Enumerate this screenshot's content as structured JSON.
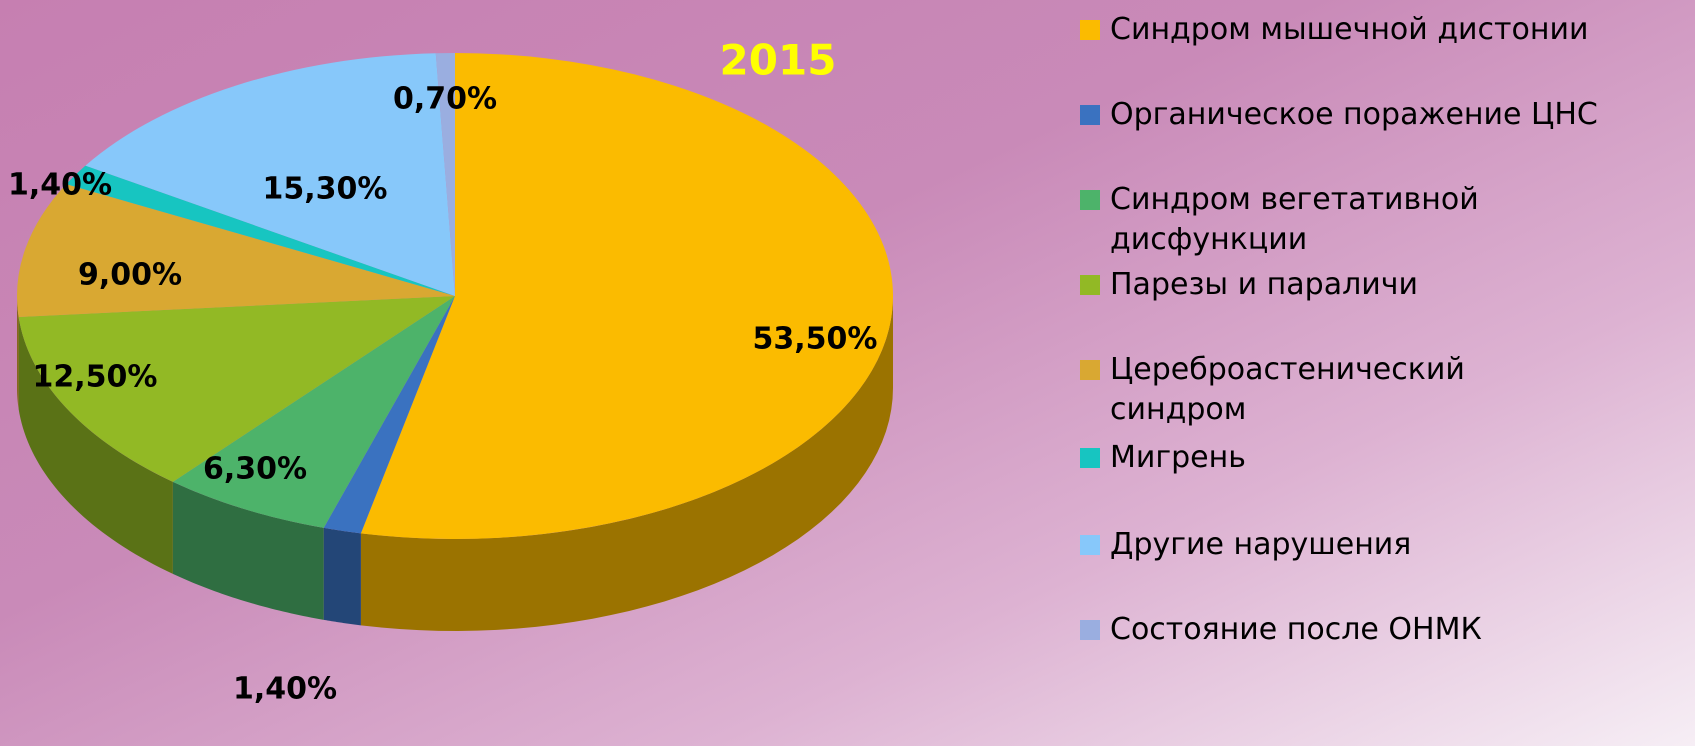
{
  "chart_data": {
    "type": "pie",
    "title": "2015",
    "series": [
      {
        "name": "Синдром мышечной дистонии",
        "color": "#fbbb00"
      },
      {
        "name": "Органическое поражение ЦНС",
        "color": "#3a72c0"
      },
      {
        "name": "Синдром вегетативной дисфункции",
        "color": "#4db36a"
      },
      {
        "name": "Парезы и параличи",
        "color": "#92b925"
      },
      {
        "name": "Цереброастенический синдром",
        "color": "#d9a832"
      },
      {
        "name": "Мигрень",
        "color": "#17c5c1"
      },
      {
        "name": "Другие нарушения",
        "color": "#87c8fa"
      },
      {
        "name": "Состояние после ОНМК",
        "color": "#9aaee0"
      }
    ],
    "values": [
      53.5,
      1.4,
      6.3,
      12.5,
      9.0,
      1.4,
      15.3,
      0.7
    ],
    "value_labels": [
      "53,50%",
      "1,40%",
      "6,30%",
      "12,50%",
      "9,00%",
      "1,40%",
      "15,30%",
      "0,70%"
    ],
    "legend": "right"
  }
}
